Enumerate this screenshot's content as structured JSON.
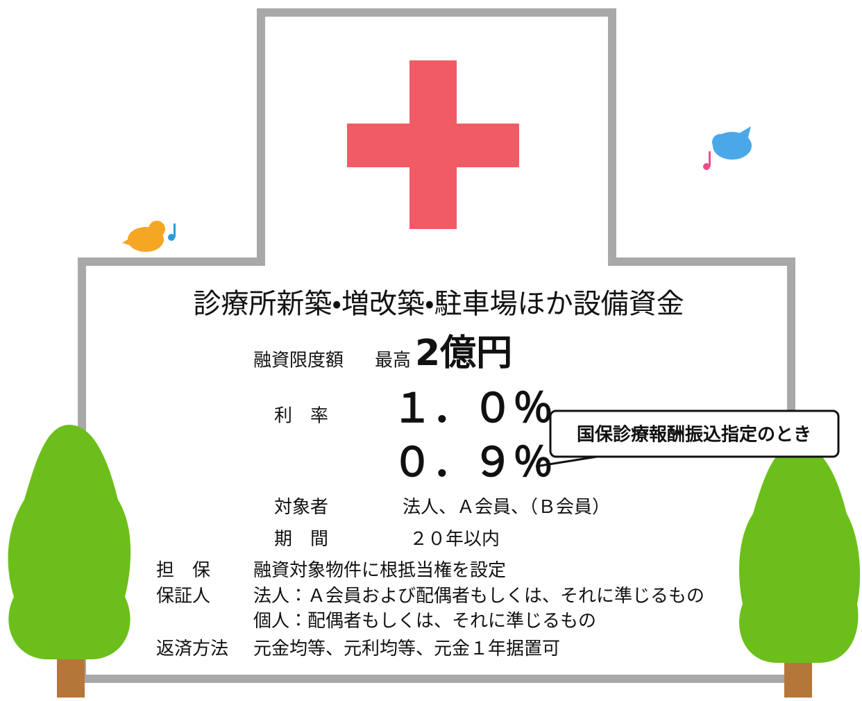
{
  "title": "診療所新築・増改築・駐車場ほか設備資金",
  "loan_limit": {
    "label": "融資限度額",
    "prefix": "最高",
    "amount": "2億円"
  },
  "interest": {
    "label": "利　率",
    "rate": "１．０％",
    "special_rate": "０．９％",
    "special_note": "国保診療報酬振込指定のとき"
  },
  "eligible": {
    "label": "対象者",
    "value": "法人、Ａ会員、（Ｂ会員）"
  },
  "term": {
    "label": "期　間",
    "value": "２０年以内"
  },
  "collateral": {
    "label": "担　保",
    "value": "融資対象物件に根抵当権を設定"
  },
  "guarantor": {
    "label": "保証人",
    "lines": [
      "法人：Ａ会員および配偶者もしくは、それに準じるもの",
      "個人：配偶者もしくは、それに準じるもの"
    ]
  },
  "repayment": {
    "label": "返済方法",
    "value": "元金均等、元利均等、元金１年据置可"
  }
}
